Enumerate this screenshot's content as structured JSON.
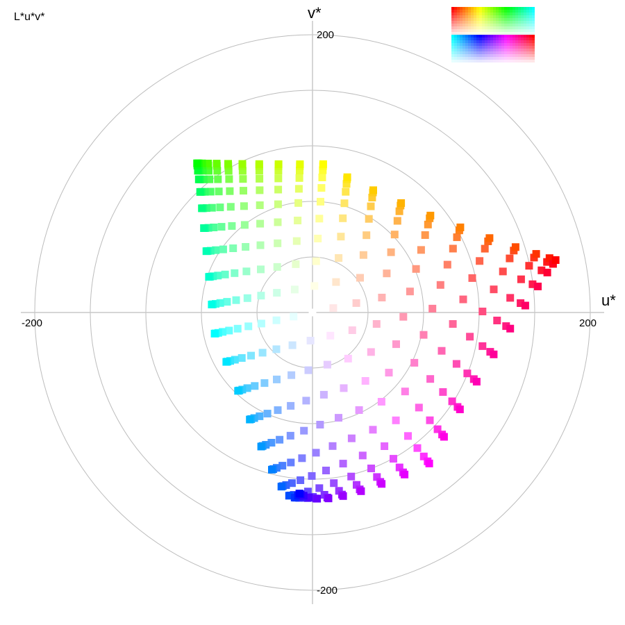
{
  "chart_data": {
    "type": "scatter",
    "title": "L*u*v*",
    "xlabel": "u*",
    "ylabel": "v*",
    "xlim": [
      -200,
      200
    ],
    "ylim": [
      -200,
      200
    ],
    "polar_grid_radii": [
      40,
      80,
      120,
      160,
      200
    ],
    "x_tick_labels": [
      "-200",
      "200"
    ],
    "y_tick_labels": [
      "200",
      "-200"
    ],
    "marker": "square",
    "grid_levels": 10,
    "lightness_range": [
      75,
      100
    ],
    "gamut_primaries": [
      {
        "name": "red",
        "u": 175,
        "v": 38,
        "color": "#ff0000"
      },
      {
        "name": "yellow",
        "u": 7,
        "v": 107,
        "color": "#ffff00"
      },
      {
        "name": "green",
        "u": -84,
        "v": 108,
        "color": "#00ff00"
      },
      {
        "name": "cyan",
        "u": -53,
        "v": -56,
        "color": "#00ffff"
      },
      {
        "name": "blue",
        "u": -9,
        "v": -130,
        "color": "#0000ff"
      },
      {
        "name": "magenta",
        "u": 84,
        "v": -108,
        "color": "#ff00ff"
      }
    ],
    "colors": {
      "grid": "#bcbcbc",
      "axis": "#c8c8c8"
    }
  }
}
